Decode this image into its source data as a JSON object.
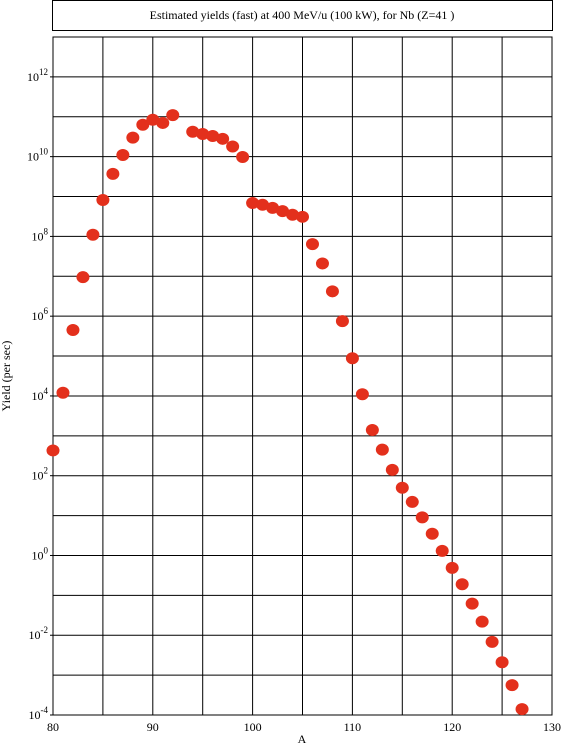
{
  "chart_data": {
    "type": "scatter",
    "title": "Estimated yields (fast) at 400 MeV/u (100 kW), for Nb (Z=41 )",
    "x_label": "A",
    "y_label": "Yield (per sec)",
    "yscale": "log",
    "grid": true,
    "color": "#e3301c",
    "xlim": [
      80,
      130
    ],
    "xticks": [
      80,
      90,
      100,
      110,
      120,
      130
    ],
    "xgrid": [
      80,
      85,
      90,
      95,
      100,
      105,
      110,
      115,
      120,
      125,
      130
    ],
    "ylim": [
      0.0001,
      10000000000000
    ],
    "yticks": [
      {
        "value": 0.0001,
        "label": "10",
        "exponent": "-4"
      },
      {
        "value": 0.01,
        "label": "10",
        "exponent": "-2"
      },
      {
        "value": 1,
        "label": "10",
        "exponent": "0"
      },
      {
        "value": 100,
        "label": "10",
        "exponent": "2"
      },
      {
        "value": 10000,
        "label": "10",
        "exponent": "4"
      },
      {
        "value": 1000000,
        "label": "10",
        "exponent": "6"
      },
      {
        "value": 100000000,
        "label": "10",
        "exponent": "8"
      },
      {
        "value": 10000000000,
        "label": "10",
        "exponent": "10"
      },
      {
        "value": 1000000000000,
        "label": "10",
        "exponent": "12"
      }
    ],
    "ygrid": [
      0.0001,
      0.001,
      0.01,
      0.1,
      1,
      10,
      100,
      1000,
      10000,
      100000,
      1000000,
      10000000,
      100000000,
      1000000000,
      10000000000,
      100000000000,
      1000000000000,
      10000000000000
    ],
    "series": [
      {
        "name": "Nb",
        "color": "#e3301c",
        "x": [
          80,
          81,
          82,
          83,
          84,
          85,
          86,
          87,
          88,
          89,
          90,
          91,
          92,
          94,
          95,
          96,
          97,
          98,
          99,
          100,
          101,
          102,
          103,
          104,
          105,
          106,
          107,
          108,
          109,
          110,
          111,
          112,
          113,
          114,
          115,
          116,
          117,
          118,
          119,
          120,
          121,
          122,
          123,
          124,
          125,
          126,
          127
        ],
        "values": [
          430,
          12000,
          450000,
          9500000,
          110000000,
          820000000,
          3700000000,
          11000000000,
          30000000000,
          63000000000,
          84000000000,
          70000000000,
          110000000000,
          42000000000,
          37000000000,
          33000000000,
          28000000000,
          18000000000,
          9800000000,
          690000000,
          620000000,
          520000000,
          430000000,
          350000000,
          310000000,
          64000000,
          21000000,
          4200000,
          750000,
          88000,
          11000,
          1400,
          450,
          140,
          50,
          22,
          9,
          3.5,
          1.3,
          0.49,
          0.19,
          0.062,
          0.022,
          0.0068,
          0.0021,
          0.00056,
          0.00014
        ]
      }
    ]
  }
}
